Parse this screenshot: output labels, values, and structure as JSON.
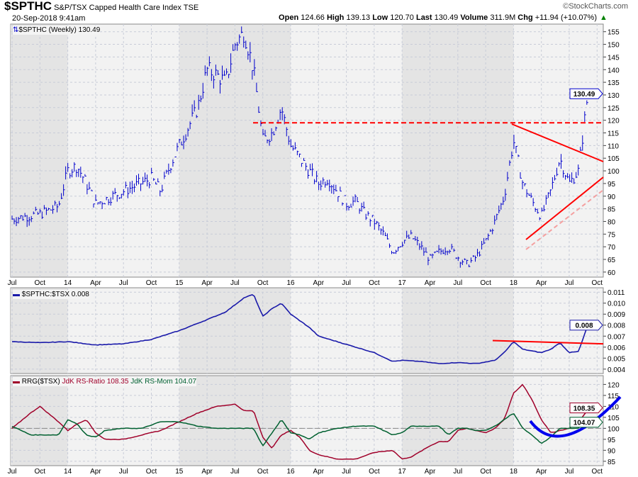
{
  "header": {
    "symbol": "$SPTHC",
    "name": "S&P/TSX Capped Health Care Index",
    "exchange": "TSE",
    "date": "20-Sep-2018 9:41am",
    "watermark": "©StockCharts.com",
    "open_label": "Open",
    "open": "124.66",
    "high_label": "High",
    "high": "139.13",
    "low_label": "Low",
    "low": "120.70",
    "last_label": "Last",
    "last": "130.49",
    "volume_label": "Volume",
    "volume": "311.9M",
    "chg_label": "Chg",
    "chg": "+11.94 (+10.07%)"
  },
  "colors": {
    "price": "#0000cc",
    "rs": "#1a1aaa",
    "ratio": "#a0002a",
    "mom": "#006030",
    "annot": "#ff0000",
    "curve": "#0000ee"
  },
  "chart_data": [
    {
      "type": "bar",
      "title": "$SPTHC (Weekly) 130.49",
      "months": [
        "2013-07",
        "2013-10",
        "2013-12",
        "2014-01",
        "2014-02",
        "2014-03",
        "2014-04",
        "2014-07",
        "2014-10",
        "2014-11",
        "2014-12",
        "2015-01",
        "2015-03",
        "2015-04",
        "2015-05",
        "2015-06",
        "2015-07",
        "2015-08",
        "2015-09",
        "2015-10",
        "2015-11",
        "2015-12",
        "2016-01",
        "2016-02",
        "2016-03",
        "2016-04",
        "2016-05",
        "2016-06",
        "2016-07",
        "2016-08",
        "2016-09",
        "2016-10",
        "2016-11",
        "2016-12",
        "2017-01",
        "2017-02",
        "2017-03",
        "2017-04",
        "2017-05",
        "2017-06",
        "2017-07",
        "2017-08",
        "2017-09",
        "2017-10",
        "2017-11",
        "2017-12",
        "2018-01",
        "2018-02",
        "2018-03",
        "2018-04",
        "2018-05",
        "2018-06",
        "2018-07",
        "2018-08",
        "2018-09"
      ],
      "values": [
        81,
        83,
        86,
        100,
        102,
        95,
        87,
        92,
        97,
        92,
        102,
        110,
        125,
        140,
        138,
        135,
        150,
        155,
        140,
        112,
        115,
        125,
        110,
        105,
        100,
        95,
        97,
        92,
        87,
        88,
        83,
        80,
        75,
        68,
        72,
        74,
        70,
        65,
        68,
        70,
        66,
        63,
        66,
        72,
        80,
        90,
        112,
        95,
        88,
        82,
        92,
        105,
        95,
        100,
        130.49
      ],
      "yticks": [
        60,
        65,
        70,
        75,
        80,
        85,
        90,
        95,
        100,
        105,
        110,
        115,
        120,
        125,
        130,
        135,
        140,
        145,
        150,
        155
      ],
      "ylim": [
        58,
        158
      ],
      "last_label": "130.49"
    },
    {
      "type": "line",
      "title": "$SPTHC:$TSX 0.008",
      "months": [
        "2013-07",
        "2013-10",
        "2014-01",
        "2014-04",
        "2014-07",
        "2014-10",
        "2015-01",
        "2015-04",
        "2015-06",
        "2015-08",
        "2015-09",
        "2015-10",
        "2015-11",
        "2015-12",
        "2016-01",
        "2016-03",
        "2016-04",
        "2016-06",
        "2016-08",
        "2016-10",
        "2016-12",
        "2017-01",
        "2017-03",
        "2017-05",
        "2017-07",
        "2017-09",
        "2017-11",
        "2017-12",
        "2018-01",
        "2018-02",
        "2018-04",
        "2018-05",
        "2018-06",
        "2018-07",
        "2018-08",
        "2018-09"
      ],
      "values": [
        0.0065,
        0.0064,
        0.0065,
        0.0062,
        0.0063,
        0.0067,
        0.0075,
        0.0085,
        0.0092,
        0.0105,
        0.0108,
        0.0088,
        0.0095,
        0.01,
        0.009,
        0.0078,
        0.007,
        0.0065,
        0.006,
        0.0055,
        0.0047,
        0.0048,
        0.0047,
        0.0045,
        0.0046,
        0.0045,
        0.0048,
        0.0055,
        0.0065,
        0.0058,
        0.0055,
        0.0058,
        0.0064,
        0.0055,
        0.0056,
        0.008
      ],
      "yticks": [
        "0.004",
        "0.005",
        "0.006",
        "0.007",
        "0.008",
        "0.009",
        "0.010",
        "0.011"
      ],
      "ylim": [
        0.0036,
        0.0114
      ],
      "last_label": "0.008"
    },
    {
      "type": "line",
      "title": "RRG($TSX)",
      "series_labels": {
        "ratio": "JdK RS-Ratio 108.35",
        "mom": "JdK RS-Mom 104.07"
      },
      "months": [
        "2013-07",
        "2013-09",
        "2013-10",
        "2013-12",
        "2014-01",
        "2014-02",
        "2014-03",
        "2014-04",
        "2014-05",
        "2014-07",
        "2014-09",
        "2014-11",
        "2015-01",
        "2015-03",
        "2015-05",
        "2015-07",
        "2015-08",
        "2015-09",
        "2015-10",
        "2015-11",
        "2015-12",
        "2016-01",
        "2016-02",
        "2016-03",
        "2016-04",
        "2016-06",
        "2016-08",
        "2016-10",
        "2016-12",
        "2017-01",
        "2017-02",
        "2017-04",
        "2017-05",
        "2017-06",
        "2017-07",
        "2017-08",
        "2017-09",
        "2017-10",
        "2017-11",
        "2017-12",
        "2018-01",
        "2018-02",
        "2018-03",
        "2018-04",
        "2018-05",
        "2018-06",
        "2018-07",
        "2018-08",
        "2018-09"
      ],
      "series": [
        {
          "name": "JdK RS-Ratio",
          "values": [
            100,
            107,
            110,
            103,
            99,
            102,
            104,
            98,
            95,
            95,
            97,
            99,
            103,
            107,
            110,
            111,
            108,
            108,
            96,
            91,
            97,
            99,
            96,
            90,
            88,
            86,
            86,
            89,
            90,
            86,
            87,
            92,
            94,
            94,
            99,
            100,
            99,
            98,
            100,
            104,
            116,
            120,
            113,
            104,
            98,
            99,
            100,
            103,
            108.35
          ]
        },
        {
          "name": "JdK RS-Mom",
          "values": [
            101,
            97,
            97,
            97,
            104,
            102,
            97,
            96,
            99,
            100,
            100,
            103,
            103,
            101,
            100,
            100,
            100,
            100,
            92,
            98,
            104,
            98,
            97,
            95,
            98,
            100,
            101,
            101,
            97,
            98,
            101,
            101,
            101,
            97,
            100,
            100,
            99,
            99,
            101,
            104,
            107,
            100,
            97,
            93,
            96,
            100,
            100,
            100,
            104.07
          ]
        }
      ],
      "yticks": [
        85,
        90,
        95,
        100,
        105,
        110,
        115,
        120
      ],
      "ylim": [
        83,
        124
      ],
      "ratio_label": "108.35",
      "mom_label": "104.07"
    }
  ],
  "xaxis": {
    "labels": [
      [
        "Jul",
        "2013-07"
      ],
      [
        "Oct",
        "2013-10"
      ],
      [
        "14",
        "2014-01"
      ],
      [
        "Apr",
        "2014-04"
      ],
      [
        "Jul",
        "2014-07"
      ],
      [
        "Oct",
        "2014-10"
      ],
      [
        "15",
        "2015-01"
      ],
      [
        "Apr",
        "2015-04"
      ],
      [
        "Jul",
        "2015-07"
      ],
      [
        "Oct",
        "2015-10"
      ],
      [
        "16",
        "2016-01"
      ],
      [
        "Apr",
        "2016-04"
      ],
      [
        "Jul",
        "2016-07"
      ],
      [
        "Oct",
        "2016-10"
      ],
      [
        "17",
        "2017-01"
      ],
      [
        "Apr",
        "2017-04"
      ],
      [
        "Jul",
        "2017-07"
      ],
      [
        "Oct",
        "2017-10"
      ],
      [
        "18",
        "2018-01"
      ],
      [
        "Apr",
        "2018-04"
      ],
      [
        "Jul",
        "2018-07"
      ],
      [
        "Oct",
        "2018-10"
      ]
    ]
  }
}
